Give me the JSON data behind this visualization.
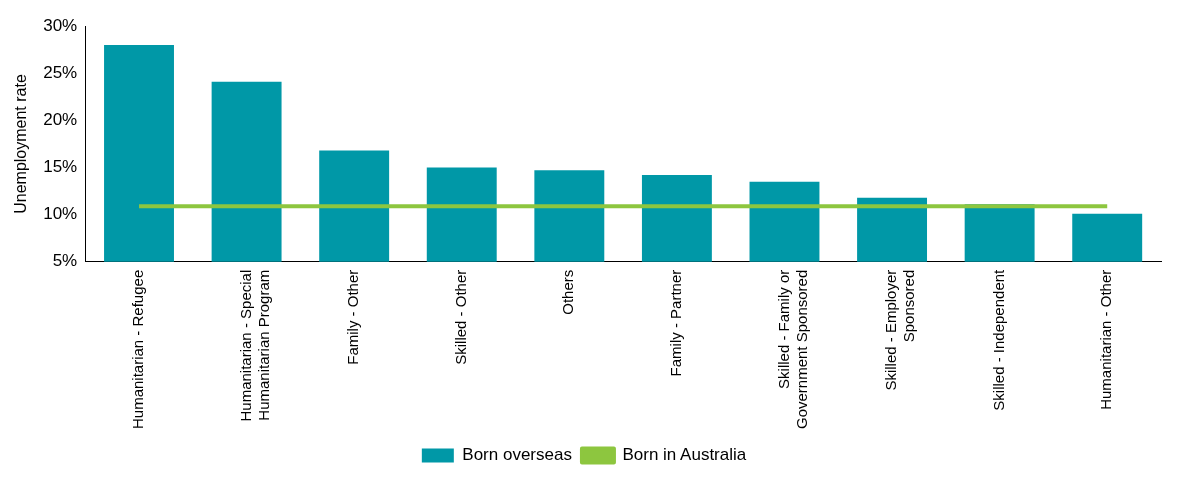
{
  "chart_data": {
    "type": "bar",
    "ylabel": "Unemployment rate",
    "categories": [
      "Humanitarian - Refugee",
      "Humanitarian - Special Humanitarian Program",
      "Family - Other",
      "Skilled - Other",
      "Others",
      "Family - Partner",
      "Skilled - Family or Government Sponsored",
      "Skilled - Employer Sponsored",
      "Skilled - Independent",
      "Humanitarian - Other"
    ],
    "series": [
      {
        "name": "Born overseas",
        "color": "#0098a7",
        "values": [
          28.0,
          24.1,
          16.8,
          15.0,
          14.7,
          14.2,
          13.5,
          11.8,
          11.1,
          10.1
        ]
      },
      {
        "name": "Born in Australia",
        "type": "line",
        "color": "#8dc63f",
        "values": [
          10.9,
          10.9,
          10.9,
          10.9,
          10.9,
          10.9,
          10.9,
          10.9,
          10.9,
          10.9
        ]
      }
    ],
    "ylim": [
      5,
      30
    ],
    "yticks": [
      {
        "value": 5,
        "label": "5%"
      },
      {
        "value": 10,
        "label": "10%"
      },
      {
        "value": 15,
        "label": "15%"
      },
      {
        "value": 20,
        "label": "20%"
      },
      {
        "value": 25,
        "label": "25%"
      },
      {
        "value": 30,
        "label": "30%"
      }
    ],
    "grid": false,
    "legend": "bottom",
    "marker": "none",
    "line_style": "solid"
  }
}
